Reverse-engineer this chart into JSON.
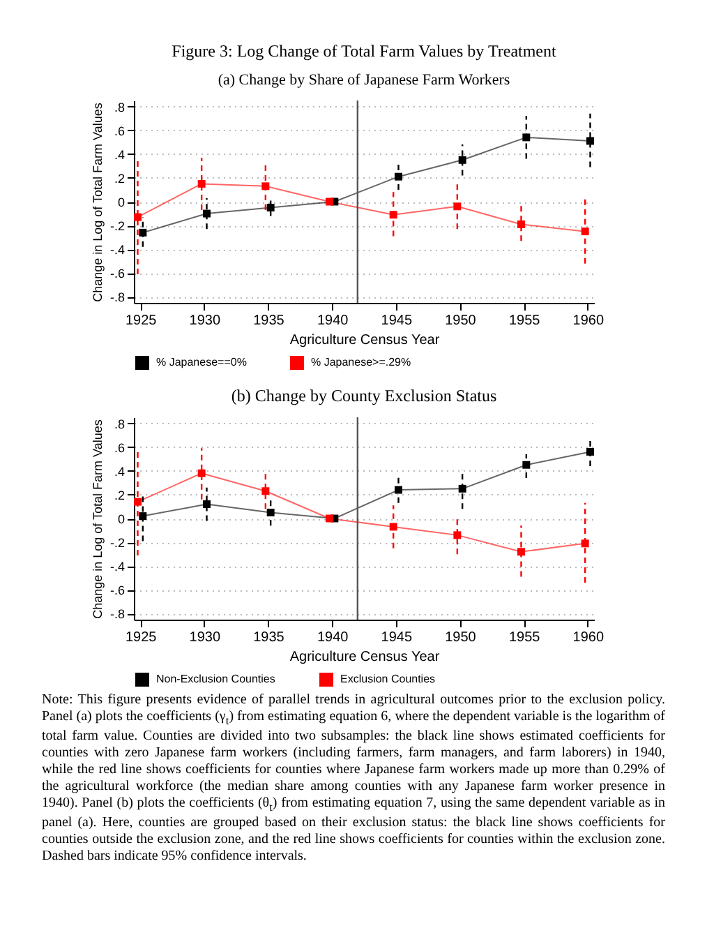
{
  "chart_data": [
    {
      "type": "line",
      "title": "Figure 3: Log Change of Total Farm Values by Treatment",
      "subtitle": "(a) Change by Share of Japanese Farm Workers",
      "xlabel": "Agriculture Census Year",
      "ylabel": "Change in Log of Total Farm Values",
      "series": [
        {
          "name": "% Japanese==0%",
          "color": "#000000",
          "x": [
            1925.2,
            1930.2,
            1935.2,
            1940.2,
            1945.2,
            1950.2,
            1955.2,
            1960.2
          ],
          "values": [
            -0.26,
            -0.1,
            -0.05,
            0,
            0.21,
            0.35,
            0.54,
            0.51
          ],
          "errors": [
            [
              -0.38,
              -0.13
            ],
            [
              -0.23,
              0.03
            ],
            [
              -0.12,
              0.02
            ],
            null,
            [
              0.1,
              0.32
            ],
            [
              0.22,
              0.48
            ],
            [
              0.36,
              0.72
            ],
            [
              0.29,
              0.74
            ]
          ]
        },
        {
          "name": "% Japanese>=.29%",
          "color": "#ff0000",
          "x": [
            1924.8,
            1929.8,
            1934.8,
            1939.8,
            1944.8,
            1949.8,
            1954.8,
            1959.8
          ],
          "values": [
            -0.13,
            0.15,
            0.13,
            0,
            -0.11,
            -0.04,
            -0.19,
            -0.25
          ],
          "errors": [
            [
              -0.61,
              0.34
            ],
            [
              -0.07,
              0.37
            ],
            [
              -0.07,
              0.33
            ],
            null,
            [
              -0.29,
              0.08
            ],
            [
              -0.23,
              0.15
            ],
            [
              -0.33,
              -0.03
            ],
            [
              -0.52,
              0.02
            ]
          ]
        }
      ],
      "xlim": [
        1924.5,
        1960.5
      ],
      "xticks": [
        1925,
        1930,
        1935,
        1940,
        1945,
        1950,
        1955,
        1960
      ],
      "ylim": [
        -0.85,
        0.85
      ],
      "yticks": [
        {
          "value": -0.8,
          "label": "-.8"
        },
        {
          "value": -0.6,
          "label": "-.6"
        },
        {
          "value": -0.4,
          "label": "-.4"
        },
        {
          "value": -0.2,
          "label": "-.2"
        },
        0,
        {
          "value": 0.2,
          "label": ".2"
        },
        {
          "value": 0.4,
          "label": ".4"
        },
        {
          "value": 0.6,
          "label": ".6"
        },
        {
          "value": 0.8,
          "label": ".8"
        }
      ],
      "ref_lines": [
        {
          "axis": "x",
          "value": 1942,
          "label": null
        }
      ],
      "grid": "y",
      "legend": "bottom",
      "marker": "square",
      "line_style": "solid"
    },
    {
      "type": "line",
      "title": "(b) Change by County Exclusion Status",
      "xlabel": "Agriculture Census Year",
      "ylabel": "Change in Log of Total Farm Values",
      "series": [
        {
          "name": "Non-Exclusion Counties",
          "color": "#000000",
          "x": [
            1925.2,
            1930.2,
            1935.2,
            1940.2,
            1945.2,
            1950.2,
            1955.2,
            1960.2
          ],
          "values": [
            0.02,
            0.12,
            0.05,
            0,
            0.24,
            0.25,
            0.45,
            0.56
          ],
          "errors": [
            [
              -0.19,
              0.21
            ],
            [
              -0.02,
              0.26
            ],
            [
              -0.06,
              0.16
            ],
            null,
            [
              0.13,
              0.36
            ],
            [
              0.08,
              0.41
            ],
            [
              0.34,
              0.54
            ],
            [
              0.44,
              0.68
            ]
          ]
        },
        {
          "name": "Exclusion Counties",
          "color": "#ff0000",
          "x": [
            1924.8,
            1929.8,
            1934.8,
            1939.8,
            1944.8,
            1949.8,
            1954.8,
            1959.8
          ],
          "values": [
            0.14,
            0.38,
            0.23,
            0,
            -0.07,
            -0.14,
            -0.28,
            -0.21
          ],
          "errors": [
            [
              -0.31,
              0.59
            ],
            [
              0.16,
              0.59
            ],
            [
              0.08,
              0.41
            ],
            null,
            [
              -0.25,
              0.11
            ],
            [
              -0.3,
              0.01
            ],
            [
              -0.49,
              -0.06
            ],
            [
              -0.54,
              0.13
            ]
          ]
        }
      ],
      "xlim": [
        1924.5,
        1960.5
      ],
      "xticks": [
        1925,
        1930,
        1935,
        1940,
        1945,
        1950,
        1955,
        1960
      ],
      "ylim": [
        -0.85,
        0.85
      ],
      "yticks": [
        {
          "value": -0.8,
          "label": "-.8"
        },
        {
          "value": -0.6,
          "label": "-.6"
        },
        {
          "value": -0.4,
          "label": "-.4"
        },
        {
          "value": -0.2,
          "label": "-.2"
        },
        0,
        {
          "value": 0.2,
          "label": ".2"
        },
        {
          "value": 0.4,
          "label": ".4"
        },
        {
          "value": 0.6,
          "label": ".6"
        },
        {
          "value": 0.8,
          "label": ".8"
        }
      ],
      "ref_lines": [
        {
          "axis": "x",
          "value": 1942,
          "label": null
        }
      ],
      "grid": "y",
      "legend": "bottom",
      "marker": "square",
      "line_style": "solid",
      "annotations": [
        "Note: This figure presents evidence of parallel trends in agricultural outcomes prior to the exclusion policy. Panel (a) plots the coefficients (γ$_{t}$) from estimating equation 6, where the dependent variable is the logarithm of total farm value. Counties are divided into two subsamples: the black line shows estimated coefficients for counties with zero Japanese farm workers (including farmers, farm managers, and farm laborers) in 1940, while the red line shows coefficients for counties where Japanese farm workers made up more than 0.29% of the agricultural workforce (the median share among counties with any Japanese farm worker presence in 1940). Panel (b) plots the coefficients (θ$_{t}$) from estimating equation 7, using the same dependent variable as in panel (a). Here, counties are grouped based on their exclusion status: the black line shows coefficients for counties outside the exclusion zone, and the red line shows coefficients for counties within the exclusion zone. Dashed bars indicate 95% confidence intervals."
      ]
    }
  ]
}
